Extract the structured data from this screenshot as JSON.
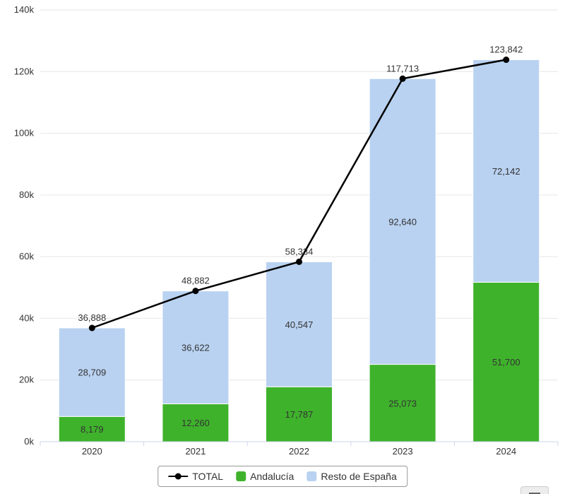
{
  "chart_data": {
    "type": "bar",
    "subtype": "stacked-column-with-total-line",
    "title": "",
    "xlabel": "",
    "ylabel": "",
    "categories": [
      "2020",
      "2021",
      "2022",
      "2023",
      "2024"
    ],
    "series": [
      {
        "name": "Andalucía",
        "type": "column",
        "color": "#3fb22c",
        "values": [
          8179,
          12260,
          17787,
          25073,
          51700
        ]
      },
      {
        "name": "Resto de España",
        "type": "column",
        "color": "#b9d2f1",
        "values": [
          28709,
          36622,
          40547,
          92640,
          72142
        ]
      },
      {
        "name": "TOTAL",
        "type": "line",
        "color": "#000000",
        "values": [
          36888,
          48882,
          58334,
          117713,
          123842
        ]
      }
    ],
    "ylim": [
      0,
      140000
    ],
    "ytick_step": 20000,
    "ytick_labels": [
      "0k",
      "20k",
      "40k",
      "60k",
      "80k",
      "100k",
      "120k",
      "140k"
    ],
    "grid": true,
    "grid_color": "#e6e6e6",
    "axis_line_color": "#ccd6eb",
    "legend_position": "bottom"
  },
  "legend": {
    "items": [
      {
        "label": "TOTAL",
        "marker": "line-dot",
        "color": "#000000"
      },
      {
        "label": "Andalucía",
        "marker": "square",
        "color": "#3fb22c"
      },
      {
        "label": "Resto de España",
        "marker": "square",
        "color": "#b9d2f1"
      }
    ]
  },
  "export_button": {
    "icon": "hamburger-menu-icon"
  }
}
